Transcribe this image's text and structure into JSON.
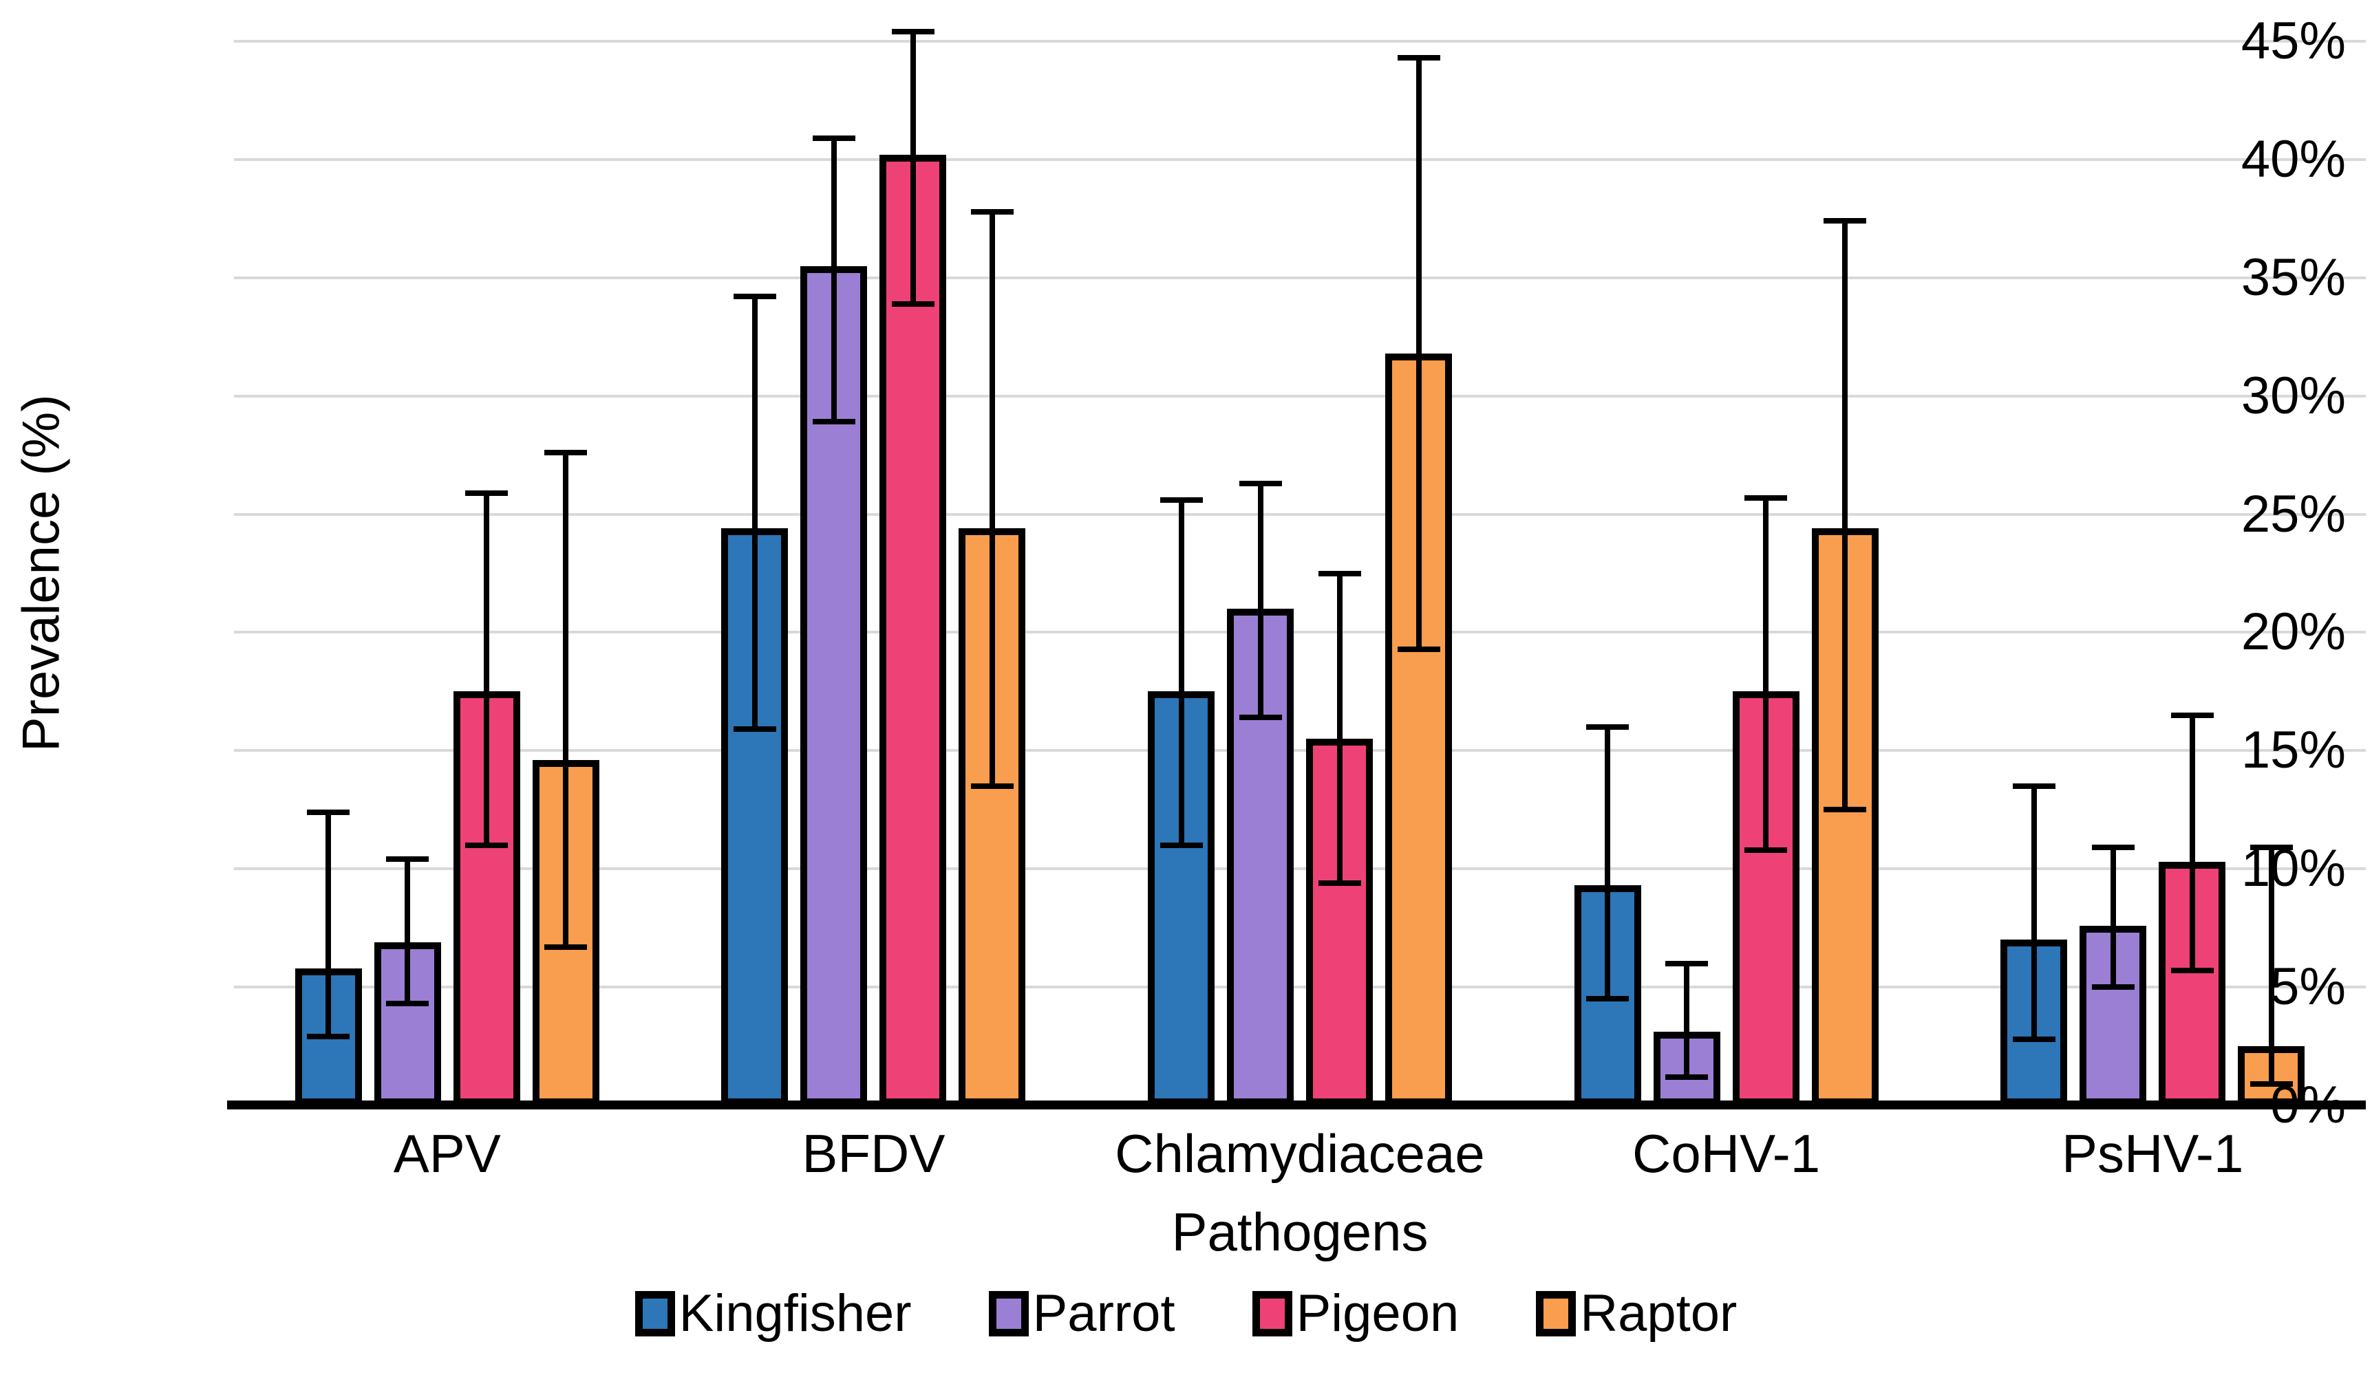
{
  "chart_data": {
    "type": "bar",
    "title": "",
    "xlabel": "Pathogens",
    "ylabel": "Prevalence (%)",
    "ylim": [
      0,
      45
    ],
    "grid": true,
    "legend_position": "bottom",
    "y_ticks": [
      {
        "value": 0,
        "label": "0%"
      },
      {
        "value": 5,
        "label": "5%"
      },
      {
        "value": 10,
        "label": "10%"
      },
      {
        "value": 15,
        "label": "15%"
      },
      {
        "value": 20,
        "label": "20%"
      },
      {
        "value": 25,
        "label": "25%"
      },
      {
        "value": 30,
        "label": "30%"
      },
      {
        "value": 35,
        "label": "35%"
      },
      {
        "value": 40,
        "label": "40%"
      },
      {
        "value": 45,
        "label": "45%"
      }
    ],
    "categories": [
      "APV",
      "BFDV",
      "Chlamydiaceae",
      "CoHV-1",
      "PsHV-1"
    ],
    "series": [
      {
        "name": "Kingfisher",
        "color": "#2D76B8",
        "values": [
          5.8,
          24.4,
          17.5,
          9.3,
          7.0
        ],
        "error_low": [
          2.9,
          15.9,
          11.0,
          4.5,
          2.8
        ],
        "error_high": [
          12.4,
          34.2,
          25.6,
          16.0,
          13.5
        ]
      },
      {
        "name": "Parrot",
        "color": "#9B7FD4",
        "values": [
          6.9,
          35.5,
          21.0,
          3.1,
          7.6
        ],
        "error_low": [
          4.3,
          28.9,
          16.4,
          1.2,
          5.0
        ],
        "error_high": [
          10.4,
          40.9,
          26.3,
          6.0,
          10.9
        ]
      },
      {
        "name": "Pigeon",
        "color": "#EE4277",
        "values": [
          17.5,
          40.2,
          15.5,
          17.5,
          10.3
        ],
        "error_low": [
          11.0,
          33.9,
          9.4,
          10.8,
          5.7
        ],
        "error_high": [
          25.9,
          45.4,
          22.5,
          25.7,
          16.5
        ]
      },
      {
        "name": "Raptor",
        "color": "#F99D4E",
        "values": [
          14.6,
          24.4,
          31.8,
          24.4,
          2.5
        ],
        "error_low": [
          6.7,
          13.5,
          19.3,
          12.5,
          0.9
        ],
        "error_high": [
          27.6,
          37.8,
          44.3,
          37.4,
          10.9
        ]
      }
    ],
    "style": {
      "gridline_color": "#D9D9D9",
      "bar_outline_color": "#000000",
      "error_bar_color": "#000000",
      "axis_color": "#000000"
    }
  }
}
